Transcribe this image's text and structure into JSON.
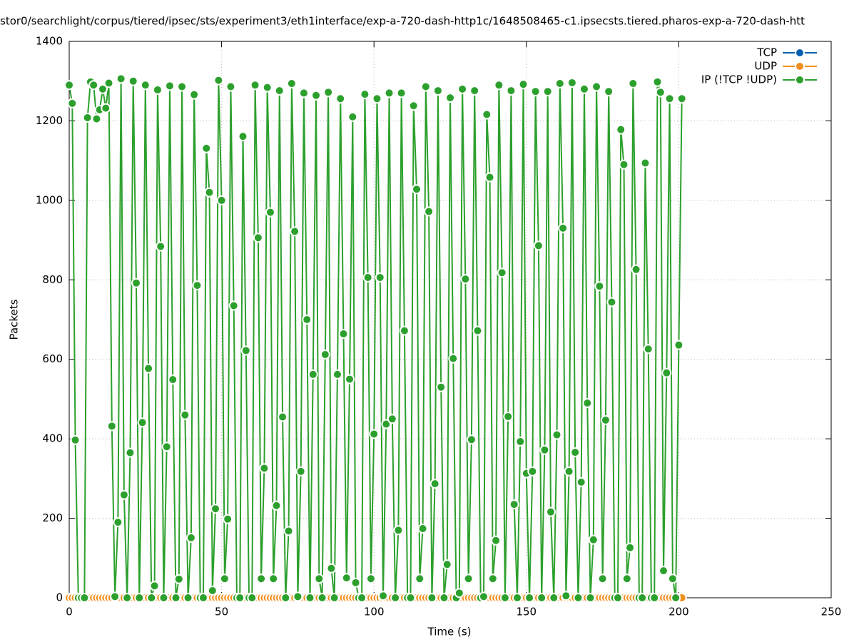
{
  "chart_data": {
    "type": "line",
    "title": "stor0/searchlight/corpus/tiered/ipsec/sts/experiment3/eth1interface/exp-a-720-dash-http1c/1648508465-c1.ipsecsts.tiered.pharos-exp-a-720-dash-htt",
    "x_label": "Time (s)",
    "y_label": "Packets",
    "xlim": [
      0,
      250
    ],
    "xticks": [
      0,
      50,
      100,
      150,
      200,
      250
    ],
    "ylim": [
      0,
      1400
    ],
    "yticks": [
      0,
      200,
      400,
      600,
      800,
      1000,
      1200,
      1400
    ],
    "grid": true,
    "legend": "top-right",
    "x": [
      0,
      1,
      2,
      3,
      4,
      5,
      6,
      7,
      8,
      9,
      10,
      11,
      12,
      13,
      14,
      15,
      16,
      17,
      18,
      19,
      20,
      21,
      22,
      23,
      24,
      25,
      26,
      27,
      28,
      29,
      30,
      31,
      32,
      33,
      34,
      35,
      36,
      37,
      38,
      39,
      40,
      41,
      42,
      43,
      44,
      45,
      46,
      47,
      48,
      49,
      50,
      51,
      52,
      53,
      54,
      55,
      56,
      57,
      58,
      59,
      60,
      61,
      62,
      63,
      64,
      65,
      66,
      67,
      68,
      69,
      70,
      71,
      72,
      73,
      74,
      75,
      76,
      77,
      78,
      79,
      80,
      81,
      82,
      83,
      84,
      85,
      86,
      87,
      88,
      89,
      90,
      91,
      92,
      93,
      94,
      95,
      96,
      97,
      98,
      99,
      100,
      101,
      102,
      103,
      104,
      105,
      106,
      107,
      108,
      109,
      110,
      111,
      112,
      113,
      114,
      115,
      116,
      117,
      118,
      119,
      120,
      121,
      122,
      123,
      124,
      125,
      126,
      127,
      128,
      129,
      130,
      131,
      132,
      133,
      134,
      135,
      136,
      137,
      138,
      139,
      140,
      141,
      142,
      143,
      144,
      145,
      146,
      147,
      148,
      149,
      150,
      151,
      152,
      153,
      154,
      155,
      156,
      157,
      158,
      159,
      160,
      161,
      162,
      163,
      164,
      165,
      166,
      167,
      168,
      169,
      170,
      171,
      172,
      173,
      174,
      175,
      176,
      177,
      178,
      179,
      180,
      181,
      182,
      183,
      184,
      185,
      186,
      187,
      188,
      189,
      190,
      191,
      192,
      193,
      194,
      195,
      196,
      197,
      198,
      199,
      200,
      201
    ],
    "series": [
      {
        "name": "TCP",
        "color": "#0060ad",
        "values": [
          0,
          0,
          0,
          0,
          0,
          0,
          0,
          0,
          0,
          0,
          0,
          0,
          0,
          0,
          0,
          0,
          0,
          0,
          0,
          0,
          0,
          0,
          0,
          0,
          0,
          0,
          0,
          0,
          0,
          0,
          0,
          0,
          0,
          0,
          0,
          0,
          0,
          0,
          0,
          0,
          0,
          0,
          0,
          0,
          0,
          0,
          0,
          0,
          0,
          0,
          0,
          0,
          0,
          0,
          0,
          0,
          0,
          0,
          0,
          0,
          0,
          0,
          0,
          0,
          0,
          0,
          0,
          0,
          0,
          0,
          0,
          0,
          0,
          0,
          0,
          0,
          0,
          0,
          0,
          0,
          0,
          0,
          0,
          0,
          0,
          0,
          0,
          0,
          0,
          0,
          0,
          0,
          0,
          0,
          0,
          0,
          0,
          0,
          0,
          0,
          0,
          0,
          0,
          0,
          0,
          0,
          0,
          0,
          0,
          0,
          0,
          0,
          0,
          0,
          0,
          0,
          0,
          0,
          0,
          0,
          0,
          0,
          0,
          0,
          0,
          0,
          0,
          0,
          0,
          0,
          0,
          0,
          0,
          0,
          0,
          0,
          0,
          0,
          0,
          0,
          0,
          0,
          0,
          0,
          0,
          0,
          0,
          0,
          0,
          0,
          0,
          0,
          0,
          0,
          0,
          0,
          0,
          0,
          0,
          0,
          0,
          0,
          0,
          0,
          0,
          0,
          0,
          0,
          0,
          0,
          0,
          0,
          0,
          0,
          0,
          0,
          0,
          0,
          0,
          0,
          0,
          0,
          0,
          0,
          0,
          0,
          0,
          0,
          0,
          0,
          0,
          0,
          0,
          0,
          0,
          0,
          0,
          0,
          0,
          0,
          0,
          0
        ]
      },
      {
        "name": "UDP",
        "color": "#f28e1c",
        "values": [
          0,
          0,
          0,
          0,
          0,
          0,
          0,
          0,
          0,
          0,
          0,
          0,
          0,
          0,
          0,
          0,
          0,
          0,
          0,
          0,
          0,
          0,
          0,
          0,
          0,
          0,
          0,
          0,
          0,
          0,
          0,
          0,
          0,
          0,
          0,
          0,
          0,
          0,
          0,
          0,
          0,
          0,
          0,
          0,
          0,
          0,
          0,
          0,
          0,
          0,
          0,
          0,
          0,
          0,
          0,
          0,
          0,
          0,
          0,
          0,
          0,
          0,
          0,
          0,
          0,
          0,
          0,
          0,
          0,
          0,
          0,
          0,
          0,
          0,
          0,
          0,
          0,
          0,
          0,
          0,
          0,
          0,
          0,
          0,
          0,
          0,
          0,
          0,
          0,
          0,
          0,
          0,
          0,
          0,
          0,
          0,
          0,
          0,
          0,
          0,
          0,
          0,
          0,
          0,
          0,
          0,
          0,
          0,
          0,
          0,
          0,
          0,
          0,
          0,
          0,
          0,
          0,
          0,
          0,
          0,
          0,
          0,
          0,
          0,
          0,
          0,
          0,
          0,
          0,
          0,
          0,
          0,
          0,
          0,
          0,
          0,
          0,
          0,
          0,
          0,
          0,
          0,
          0,
          0,
          0,
          0,
          0,
          0,
          0,
          0,
          0,
          0,
          0,
          0,
          0,
          0,
          0,
          0,
          0,
          0,
          0,
          0,
          0,
          0,
          0,
          0,
          0,
          0,
          0,
          0,
          0,
          0,
          0,
          0,
          0,
          0,
          0,
          0,
          0,
          0,
          0,
          0,
          0,
          0,
          0,
          0,
          0,
          0,
          0,
          0,
          0,
          0,
          0,
          0,
          0,
          0,
          0,
          0,
          0,
          0,
          0,
          0
        ]
      },
      {
        "name": "IP (!TCP  !UDP)",
        "color": "#2ca02c",
        "values": [
          1290,
          1244,
          397,
          0,
          0,
          0,
          1208,
          1298,
          1290,
          1205,
          1228,
          1280,
          1232,
          1295,
          432,
          3,
          190,
          1306,
          259,
          0,
          365,
          1300,
          792,
          0,
          441,
          1290,
          577,
          0,
          30,
          1278,
          884,
          0,
          380,
          1288,
          549,
          0,
          47,
          1286,
          460,
          0,
          151,
          1266,
          786,
          0,
          0,
          1131,
          1020,
          18,
          224,
          1302,
          1000,
          48,
          198,
          1286,
          735,
          0,
          0,
          1161,
          622,
          0,
          0,
          1290,
          906,
          48,
          326,
          1284,
          970,
          48,
          232,
          1276,
          455,
          0,
          168,
          1294,
          922,
          3,
          318,
          1270,
          700,
          0,
          562,
          1264,
          48,
          0,
          612,
          1272,
          74,
          0,
          562,
          1256,
          664,
          50,
          550,
          1210,
          38,
          0,
          0,
          1267,
          806,
          48,
          412,
          1256,
          806,
          5,
          437,
          1270,
          450,
          0,
          170,
          1270,
          672,
          0,
          0,
          1238,
          1028,
          48,
          174,
          1286,
          972,
          0,
          287,
          1276,
          530,
          0,
          84,
          1258,
          602,
          0,
          12,
          1280,
          802,
          48,
          398,
          1276,
          672,
          0,
          3,
          1216,
          1058,
          48,
          144,
          1290,
          818,
          0,
          456,
          1276,
          235,
          0,
          393,
          1292,
          313,
          0,
          318,
          1274,
          886,
          0,
          372,
          1274,
          216,
          0,
          410,
          1294,
          930,
          5,
          318,
          1296,
          366,
          0,
          291,
          1280,
          490,
          0,
          146,
          1286,
          784,
          48,
          447,
          1274,
          744,
          0,
          0,
          1178,
          1090,
          48,
          126,
          1294,
          826,
          0,
          0,
          1094,
          626,
          0,
          0,
          1298,
          1272,
          68,
          566,
          1256,
          48,
          0,
          636,
          1256
        ]
      }
    ]
  }
}
